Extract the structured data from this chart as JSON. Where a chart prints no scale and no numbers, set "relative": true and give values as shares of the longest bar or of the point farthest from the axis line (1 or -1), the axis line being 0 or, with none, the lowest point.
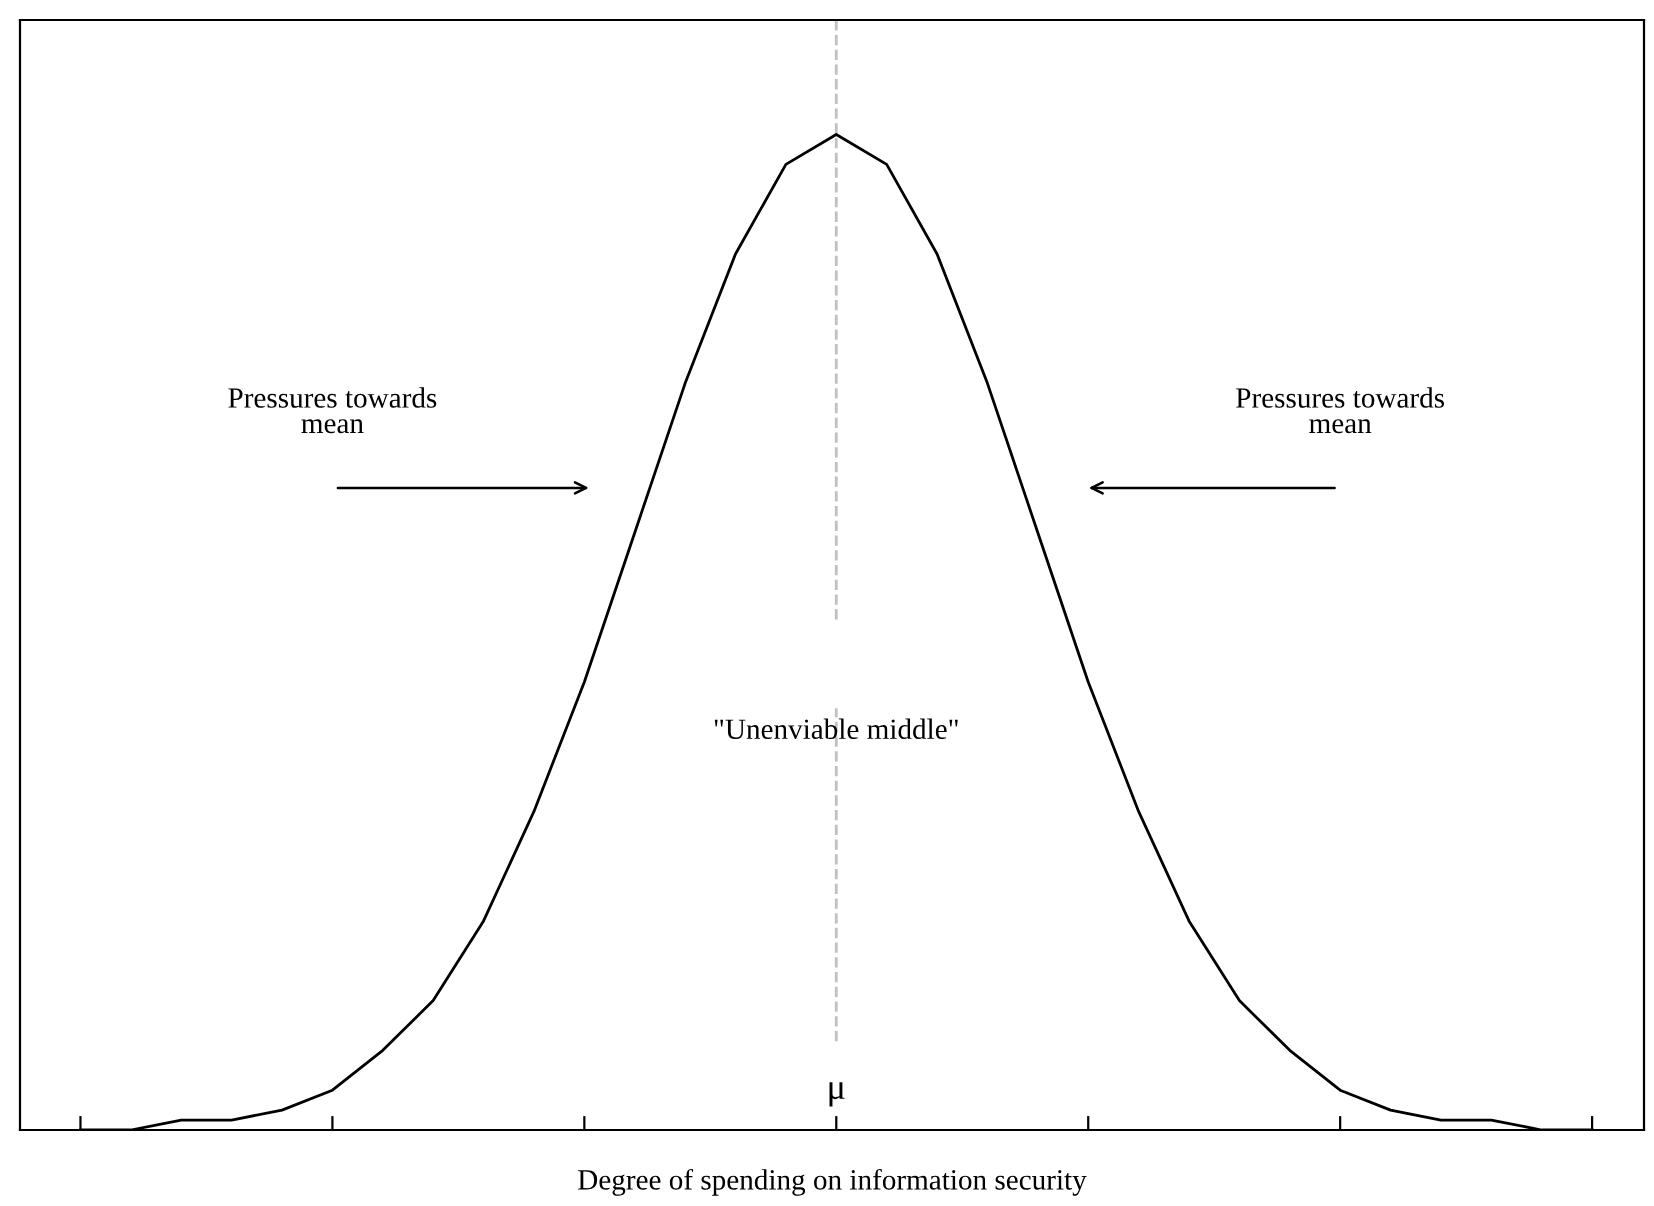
{
  "chart_data": {
    "type": "line",
    "relative": true,
    "color": "#000000",
    "categories": [
      null,
      null,
      null,
      null,
      null,
      null,
      null,
      null,
      null,
      null,
      null,
      null,
      null,
      null,
      null,
      null,
      null,
      null,
      null,
      null,
      null,
      null,
      null,
      null,
      null,
      null,
      null,
      null,
      null,
      null,
      null
    ],
    "values": [
      0,
      0,
      0.01,
      0.01,
      0.02,
      0.04,
      0.08,
      0.13,
      0.21,
      0.32,
      0.45,
      0.6,
      0.75,
      0.88,
      0.97,
      1,
      0.97,
      0.88,
      0.75,
      0.6,
      0.45,
      0.32,
      0.21,
      0.13,
      0.08,
      0.04,
      0.02,
      0.01,
      0.01,
      0,
      0
    ],
    "xlabel": "Degree of spending on information security",
    "annotations": [
      "Pressures towards\nmean",
      "Pressures towards\nmean",
      "\"Unenviable middle\"",
      "μ"
    ],
    "grid": false
  }
}
